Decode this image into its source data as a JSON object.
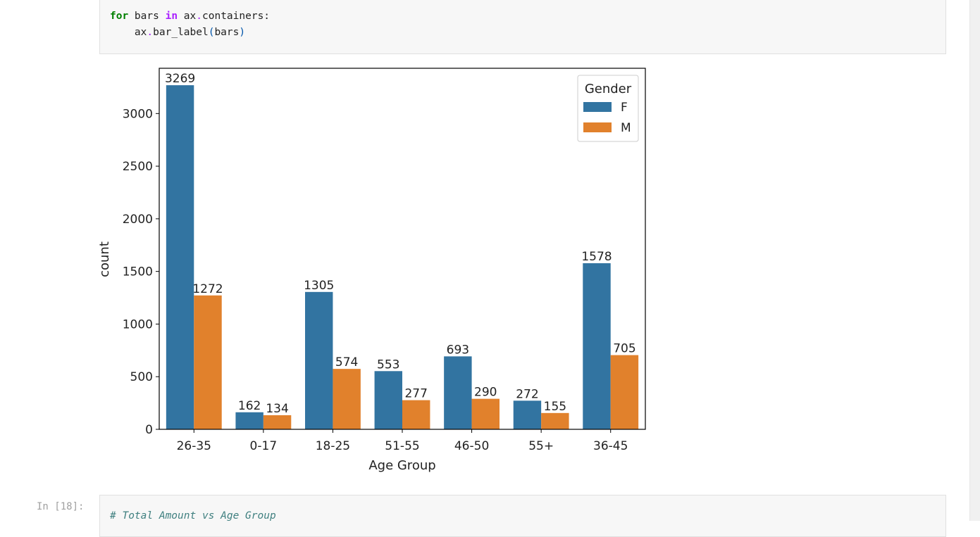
{
  "code_cell_top": {
    "kw_for": "for",
    "var_bars": " bars ",
    "kw_in": "in",
    "expr1": " ax",
    "dot1": ".",
    "expr2": "containers:",
    "line2_indent": "    ax",
    "dot2": ".",
    "line2_call": "bar_label",
    "paren_open": "(",
    "line2_arg": "bars",
    "paren_close": ")"
  },
  "code_cell_bottom": {
    "prompt": "In [18]:",
    "comment": "# Total Amount vs Age Group"
  },
  "colors": {
    "F": "#3274a1",
    "M": "#e1812c"
  },
  "chart_data": {
    "type": "bar",
    "categories": [
      "26-35",
      "0-17",
      "18-25",
      "51-55",
      "46-50",
      "55+",
      "36-45"
    ],
    "series": [
      {
        "name": "F",
        "values": [
          3269,
          162,
          1305,
          553,
          693,
          272,
          1578
        ]
      },
      {
        "name": "M",
        "values": [
          1272,
          134,
          574,
          277,
          290,
          155,
          705
        ]
      }
    ],
    "xlabel": "Age Group",
    "ylabel": "count",
    "ylim": [
      0,
      3430
    ],
    "yticks": [
      0,
      500,
      1000,
      1500,
      2000,
      2500,
      3000
    ],
    "legend_title": "Gender",
    "legend_position": "top-right",
    "grid": false
  }
}
